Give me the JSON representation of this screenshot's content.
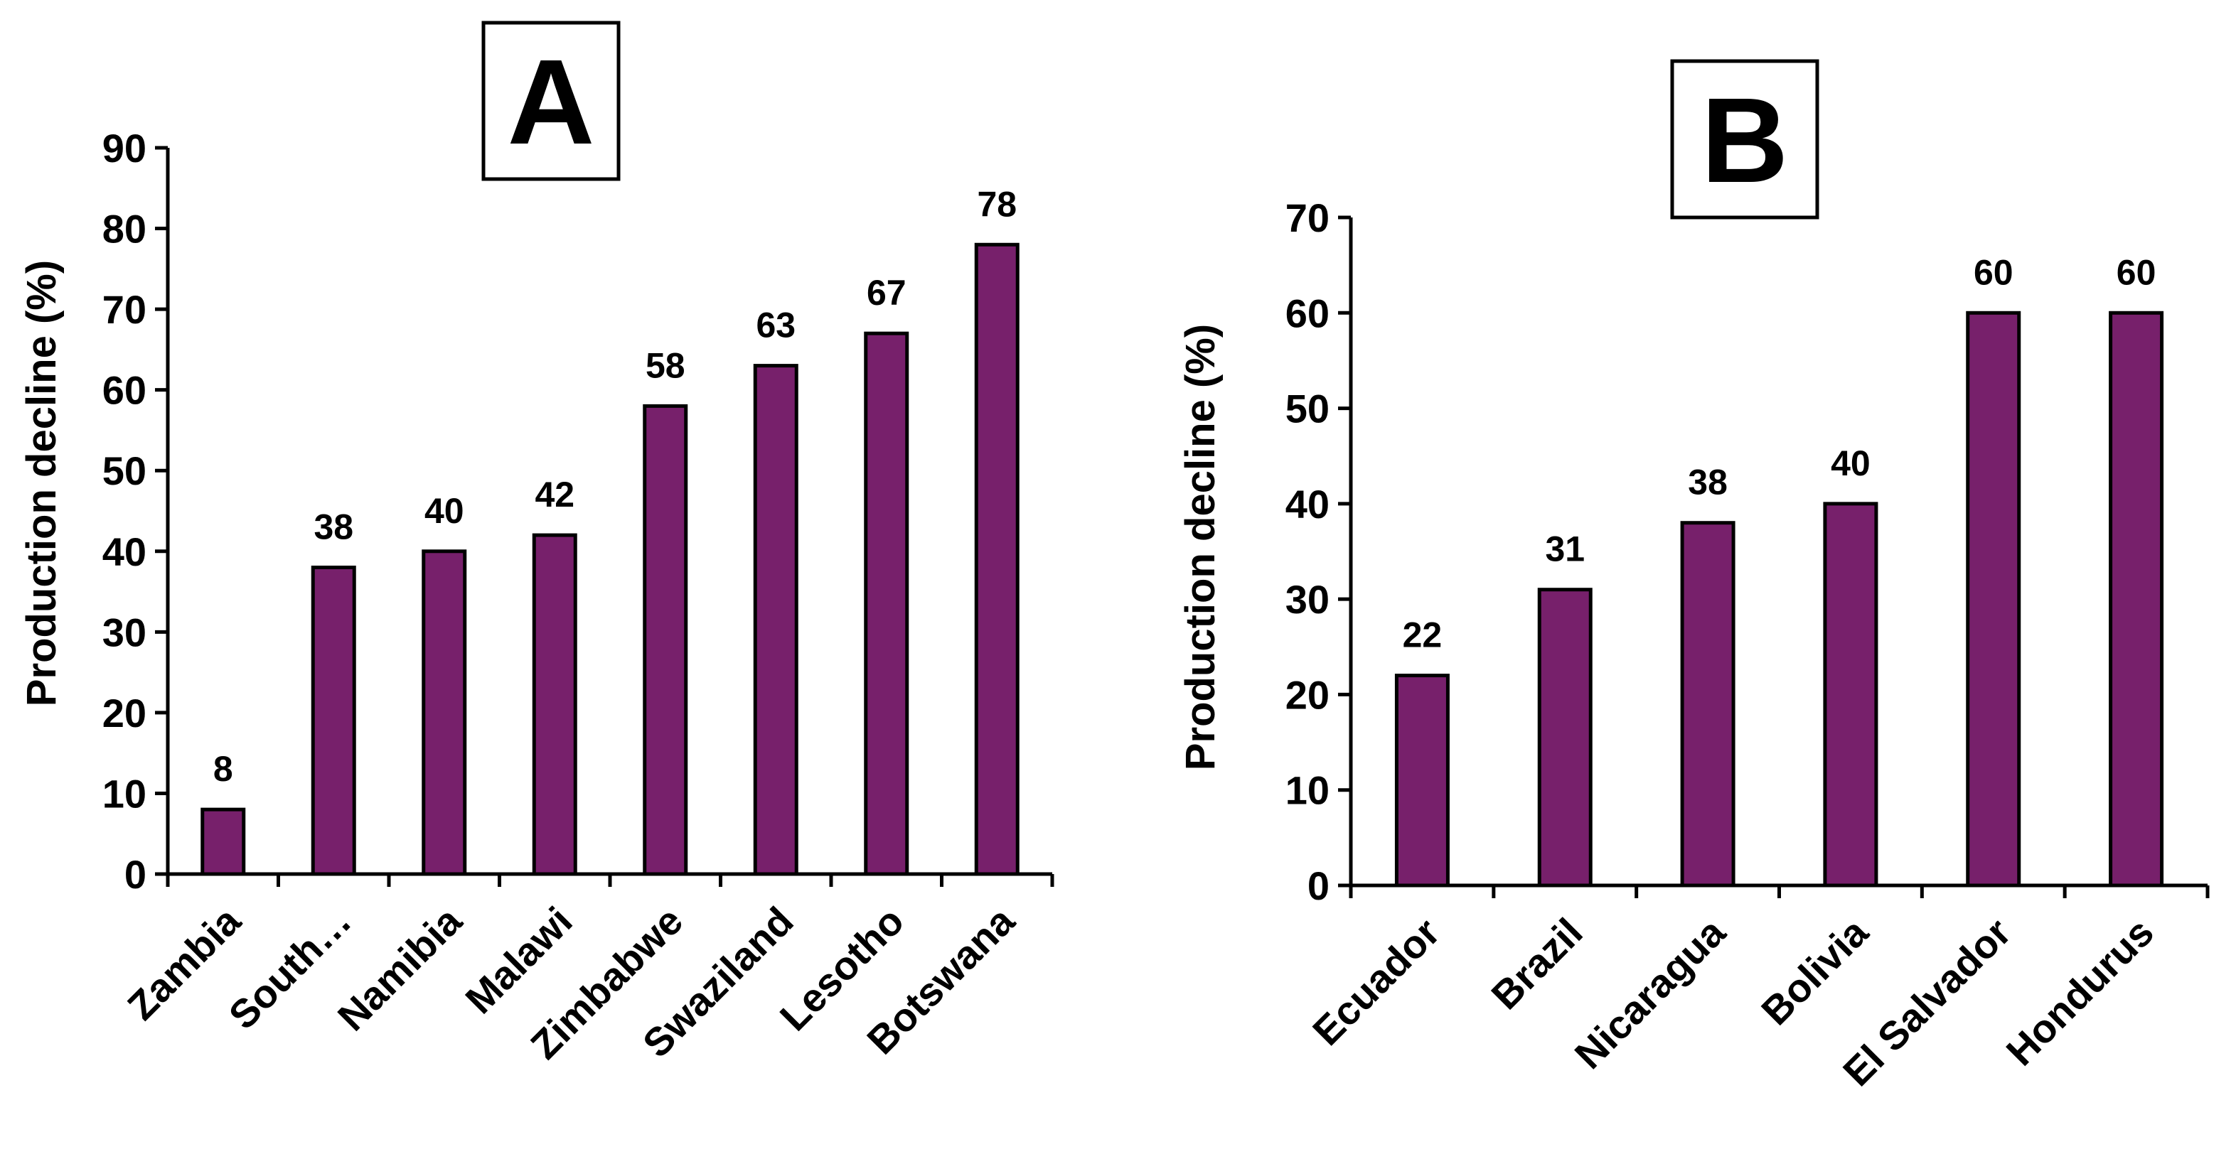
{
  "chart_data": [
    {
      "type": "bar",
      "panel": "A",
      "categories": [
        "Zambia",
        "South…",
        "Namibia",
        "Malawi",
        "Zimbabwe",
        "Swaziland",
        "Lesotho",
        "Botswana"
      ],
      "values": [
        8,
        38,
        40,
        42,
        58,
        63,
        67,
        78
      ],
      "value_labels": [
        "8",
        "38",
        "40",
        "42",
        "58",
        "63",
        "67",
        "78"
      ],
      "ylabel": "Production decline (%)",
      "ylim": [
        0,
        90
      ],
      "yticks": [
        "0",
        "10",
        "20",
        "30",
        "40",
        "50",
        "60",
        "70",
        "80",
        "90"
      ],
      "grid": false
    },
    {
      "type": "bar",
      "panel": "B",
      "categories": [
        "Ecuador",
        "Brazil",
        "Nicaragua",
        "Bolivia",
        "El Salvador",
        "Hondurus"
      ],
      "values": [
        22,
        31,
        38,
        40,
        60,
        60
      ],
      "value_labels": [
        "22",
        "31",
        "38",
        "40",
        "60",
        "60"
      ],
      "ylabel": "Production decline (%)",
      "ylim": [
        0,
        70
      ],
      "yticks": [
        "0",
        "10",
        "20",
        "30",
        "40",
        "50",
        "60",
        "70"
      ],
      "grid": false
    }
  ],
  "colors": {
    "bar": "#77206b",
    "stroke": "#000000"
  }
}
